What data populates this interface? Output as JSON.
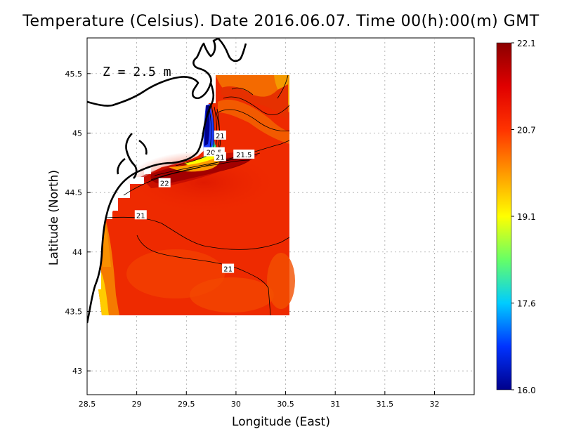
{
  "title": "Temperature (Celsius). Date 2016.06.07. Time 00(h):00(m)  GMT",
  "depth_label": "Z  =  2.5  m",
  "x_axis": {
    "label": "Longitude (East)",
    "ticks": [
      "28.5",
      "29",
      "29.5",
      "30",
      "30.5",
      "31",
      "31.5",
      "32"
    ],
    "range": [
      28.5,
      32.4
    ]
  },
  "y_axis": {
    "label": "Latitude (North)",
    "ticks": [
      "43",
      "43.5",
      "44",
      "44.5",
      "45",
      "45.5"
    ],
    "range": [
      42.8,
      45.8
    ]
  },
  "colorbar": {
    "ticks": [
      "22.1",
      "20.7",
      "19.1",
      "17.6",
      "16.0"
    ],
    "min": 16.0,
    "max": 22.1,
    "colors": [
      "#00008b",
      "#0033ff",
      "#00ccff",
      "#66ff66",
      "#ffff00",
      "#ff9900",
      "#ff3300",
      "#e00000",
      "#8b0000"
    ]
  },
  "contour_labels": [
    {
      "text": "21",
      "lon": 29.84,
      "lat": 44.98
    },
    {
      "text": "20.5",
      "lon": 29.78,
      "lat": 44.84
    },
    {
      "text": "21",
      "lon": 29.84,
      "lat": 44.8
    },
    {
      "text": "21.5",
      "lon": 30.08,
      "lat": 44.82
    },
    {
      "text": "22",
      "lon": 29.28,
      "lat": 44.58
    },
    {
      "text": "21",
      "lon": 29.04,
      "lat": 44.31
    },
    {
      "text": "21",
      "lon": 29.92,
      "lat": 43.86
    }
  ],
  "grid": "dotted",
  "chart_data": {
    "type": "heatmap",
    "title": "Temperature (Celsius). Date 2016.06.07. Time 00(h):00(m)  GMT",
    "xlabel": "Longitude (East)",
    "ylabel": "Latitude (North)",
    "xlim": [
      28.5,
      32.4
    ],
    "ylim": [
      42.8,
      45.8
    ],
    "value_range": [
      16.0,
      22.1
    ],
    "domain_lon": [
      28.62,
      30.55
    ],
    "domain_lat": [
      43.48,
      45.5
    ],
    "contour_levels": [
      20.5,
      21,
      21.5,
      22
    ],
    "observed_extremes": {
      "min_near": [
        29.7,
        45.05
      ],
      "max_near": [
        29.4,
        44.65
      ]
    }
  }
}
